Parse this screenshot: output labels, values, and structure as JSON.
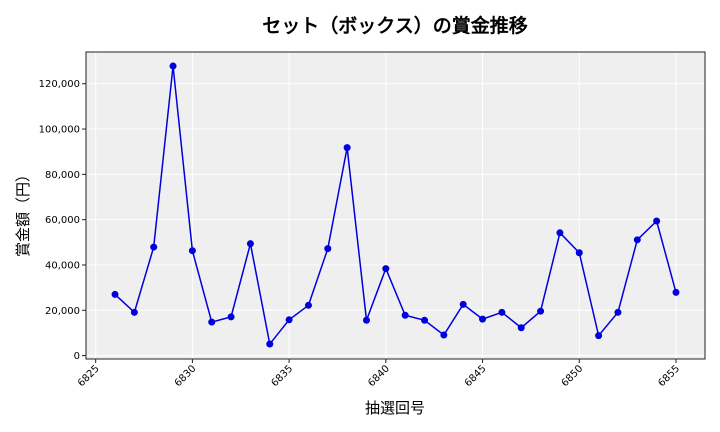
{
  "chart_data": {
    "type": "line",
    "title": "セット（ボックス）の賞金推移",
    "xlabel": "抽選回号",
    "ylabel": "賞金額（円）",
    "x": [
      6826,
      6827,
      6828,
      6829,
      6830,
      6831,
      6832,
      6833,
      6834,
      6835,
      6836,
      6837,
      6838,
      6839,
      6840,
      6841,
      6842,
      6843,
      6844,
      6845,
      6846,
      6847,
      6848,
      6849,
      6850,
      6851,
      6852,
      6853,
      6854,
      6855
    ],
    "series": [
      {
        "name": "セット（ボックス）",
        "color": "#0000dd",
        "marker": "circle",
        "values": [
          27000,
          19100,
          47900,
          127800,
          46300,
          14800,
          17100,
          49400,
          5100,
          15800,
          22200,
          47200,
          91800,
          15600,
          38400,
          17800,
          15600,
          9100,
          22600,
          16100,
          19100,
          12300,
          19600,
          54200,
          45400,
          8800,
          19100,
          51100,
          59400,
          27900
        ]
      }
    ],
    "xlim": [
      6824.5,
      6856.5
    ],
    "ylim": [
      -1500,
      134000
    ],
    "xticks": [
      6825,
      6830,
      6835,
      6840,
      6845,
      6850,
      6855
    ],
    "xtick_labels": [
      "6825",
      "6830",
      "6835",
      "6840",
      "6845",
      "6850",
      "6855"
    ],
    "yticks": [
      0,
      20000,
      40000,
      60000,
      80000,
      100000,
      120000
    ],
    "ytick_labels": [
      "0",
      "20,000",
      "40,000",
      "60,000",
      "80,000",
      "100,000",
      "120,000"
    ],
    "grid": true,
    "legend": false,
    "background": "#efefef"
  }
}
